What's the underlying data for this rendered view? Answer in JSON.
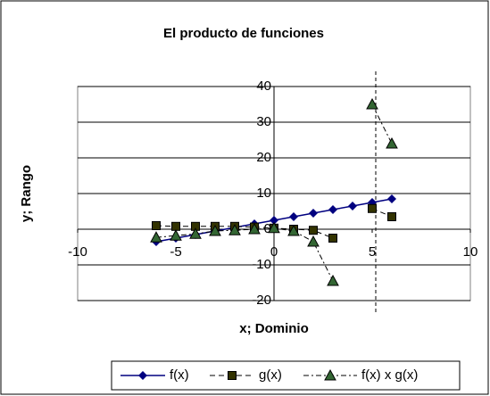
{
  "chart_data": {
    "type": "line",
    "title": "El producto de funciones",
    "xlabel": "x; Dominio",
    "ylabel": "y; Rango",
    "x": [
      -6,
      -5,
      -4,
      -3,
      -2,
      -1,
      0,
      1,
      2,
      3,
      4,
      5,
      6
    ],
    "series": [
      {
        "name": "f(x)",
        "color": "#000080",
        "marker": "diamond",
        "dash": "solid",
        "values": [
          -3.5,
          -2.5,
          -1.5,
          -0.5,
          0.5,
          1.5,
          2.5,
          3.5,
          4.5,
          5.5,
          6.5,
          7.5,
          8.5
        ]
      },
      {
        "name": "g(x)",
        "color": "#333300",
        "marker": "square",
        "dash": "dash",
        "values": [
          1,
          0.8,
          0.8,
          0.8,
          0.8,
          0.6,
          0.3,
          0,
          -0.3,
          -2.5,
          null,
          5.8,
          3.5
        ]
      },
      {
        "name": "f(x) x g(x)",
        "color": "#003300",
        "marker": "triangle",
        "dash": "dashdot",
        "values": [
          -2.3,
          -1.8,
          -1.3,
          -0.5,
          -0.3,
          0,
          0.3,
          -0.5,
          -3.5,
          -14.5,
          null,
          35,
          24
        ]
      }
    ],
    "xlim": [
      -10,
      10
    ],
    "xticks": [
      -10,
      -5,
      0,
      5,
      10
    ],
    "ylim": [
      -20,
      40
    ],
    "yticks": [
      -20,
      -10,
      0,
      10,
      20,
      30,
      40
    ],
    "grid": true,
    "legend": "bottom"
  }
}
